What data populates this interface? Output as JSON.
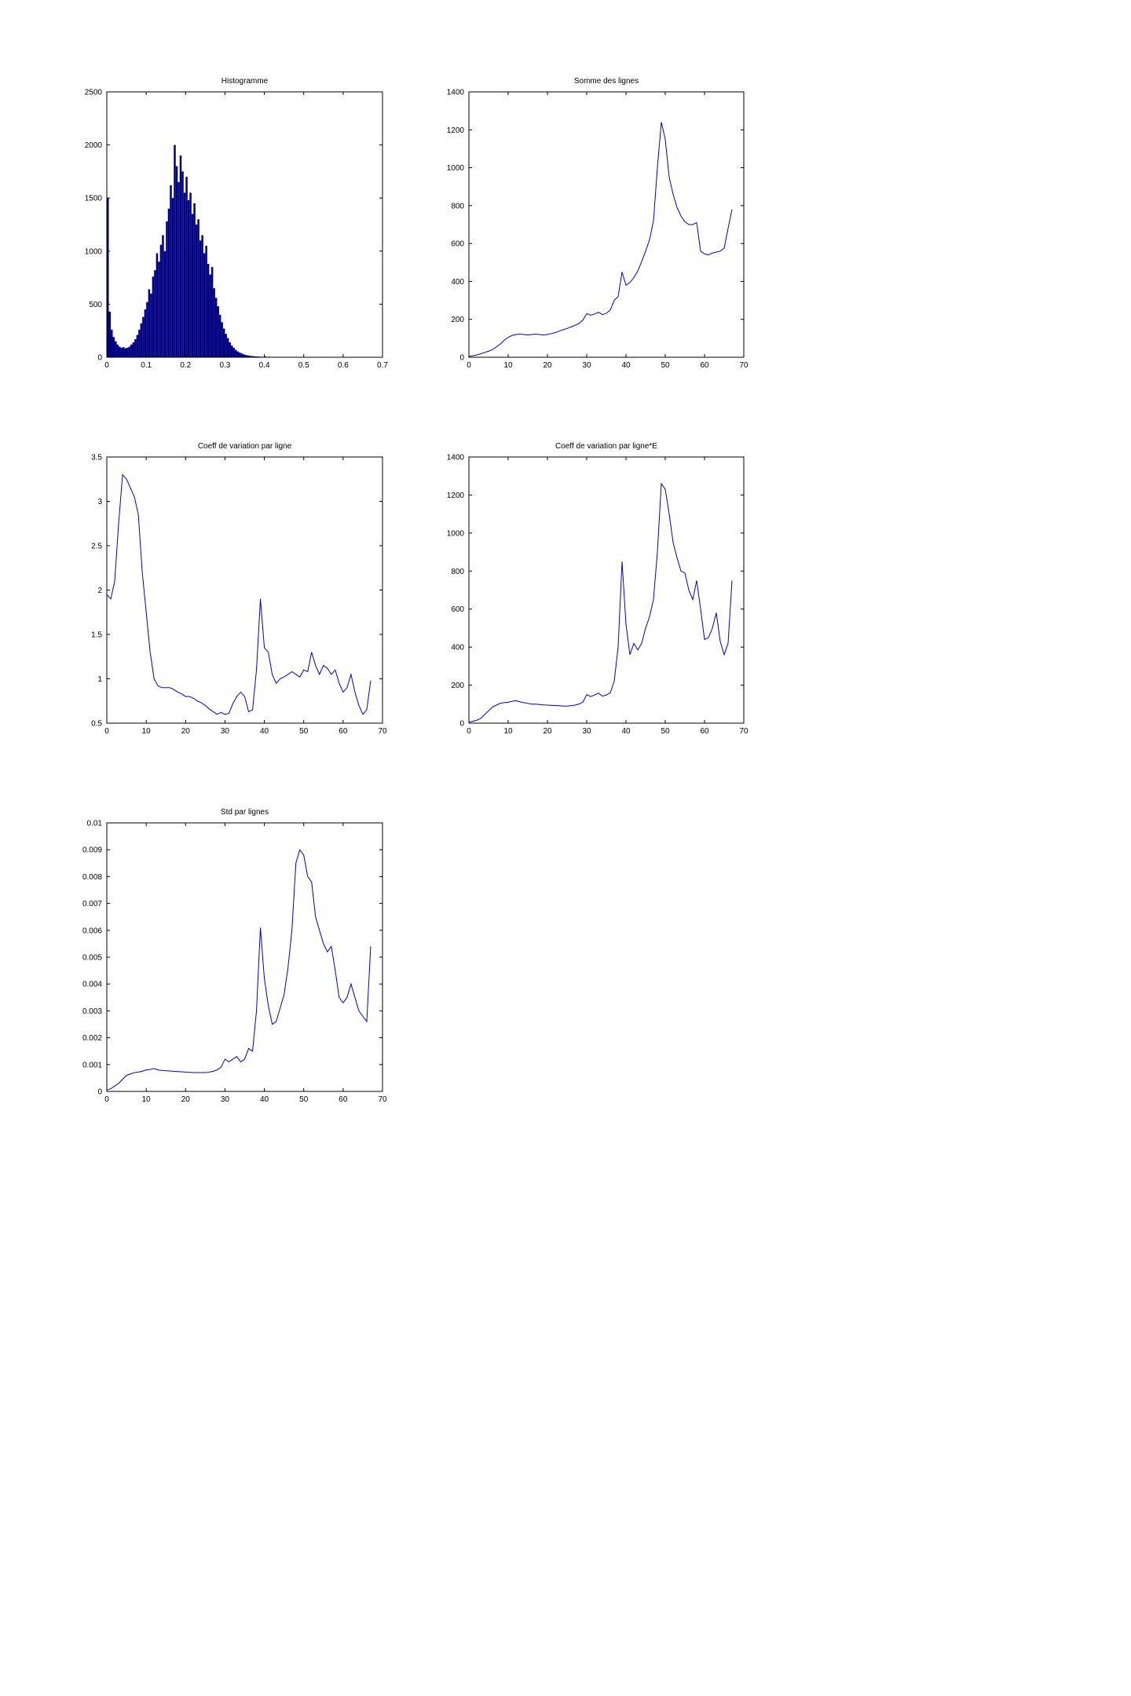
{
  "figure": {
    "background": "#ffffff"
  },
  "chart_data": [
    {
      "id": "histogramme",
      "type": "bar",
      "title": "Histogramme",
      "color": "#000080",
      "xlim": [
        0,
        0.7
      ],
      "ylim": [
        0,
        2500
      ],
      "xticks": [
        0,
        0.1,
        0.2,
        0.3,
        0.4,
        0.5,
        0.6,
        0.7
      ],
      "yticks": [
        0,
        500,
        1000,
        1500,
        2000,
        2500
      ],
      "bin_start": 0,
      "bin_width": 0.005,
      "values": [
        1500,
        430,
        260,
        190,
        150,
        120,
        100,
        90,
        95,
        85,
        90,
        100,
        120,
        140,
        170,
        210,
        260,
        320,
        380,
        450,
        520,
        640,
        600,
        760,
        820,
        980,
        900,
        1060,
        1150,
        1000,
        1280,
        1400,
        1620,
        1500,
        2000,
        1800,
        1650,
        1900,
        1750,
        1550,
        1700,
        1480,
        1550,
        1350,
        1450,
        1250,
        1300,
        1100,
        1150,
        980,
        1050,
        880,
        780,
        850,
        650,
        560,
        480,
        400,
        330,
        270,
        220,
        180,
        140,
        110,
        90,
        70,
        55,
        45,
        35,
        28,
        22,
        18,
        15,
        12,
        10,
        8,
        7,
        6,
        5,
        4,
        8,
        3,
        5,
        2,
        4,
        2,
        3,
        0,
        2,
        0,
        3,
        0,
        2,
        0,
        1,
        0,
        2,
        0,
        1,
        2
      ]
    },
    {
      "id": "somme-des-lignes",
      "type": "line",
      "title": "Somme des lignes",
      "color": "#0000cc",
      "xlim": [
        0,
        70
      ],
      "ylim": [
        0,
        1400
      ],
      "xticks": [
        0,
        10,
        20,
        30,
        40,
        50,
        60,
        70
      ],
      "yticks": [
        0,
        200,
        400,
        600,
        800,
        1000,
        1200,
        1400
      ],
      "x_start": 0,
      "x_step": 1,
      "values": [
        5,
        8,
        12,
        18,
        25,
        32,
        40,
        55,
        70,
        90,
        105,
        115,
        120,
        122,
        120,
        118,
        120,
        122,
        120,
        118,
        120,
        125,
        130,
        138,
        145,
        152,
        160,
        168,
        178,
        195,
        230,
        222,
        228,
        238,
        225,
        232,
        250,
        300,
        320,
        450,
        380,
        395,
        420,
        455,
        505,
        560,
        620,
        720,
        1000,
        1240,
        1150,
        950,
        860,
        790,
        745,
        715,
        700,
        700,
        710,
        560,
        545,
        540,
        550,
        555,
        560,
        575,
        680,
        780
      ]
    },
    {
      "id": "coeff-variation-par-ligne",
      "type": "line",
      "title": "Coeff de variation par ligne",
      "color": "#0000cc",
      "xlim": [
        0,
        70
      ],
      "ylim": [
        0.5,
        3.5
      ],
      "xticks": [
        0,
        10,
        20,
        30,
        40,
        50,
        60,
        70
      ],
      "yticks": [
        0.5,
        1,
        1.5,
        2,
        2.5,
        3,
        3.5
      ],
      "x_start": 0,
      "x_step": 1,
      "values": [
        1.95,
        1.9,
        2.1,
        2.75,
        3.3,
        3.25,
        3.15,
        3.05,
        2.85,
        2.2,
        1.75,
        1.3,
        1.0,
        0.92,
        0.9,
        0.9,
        0.9,
        0.88,
        0.85,
        0.83,
        0.8,
        0.8,
        0.78,
        0.75,
        0.73,
        0.7,
        0.66,
        0.63,
        0.6,
        0.62,
        0.6,
        0.61,
        0.72,
        0.8,
        0.85,
        0.8,
        0.63,
        0.65,
        1.1,
        1.9,
        1.35,
        1.3,
        1.05,
        0.95,
        1.0,
        1.02,
        1.05,
        1.08,
        1.05,
        1.02,
        1.1,
        1.08,
        1.3,
        1.15,
        1.05,
        1.15,
        1.12,
        1.05,
        1.1,
        0.95,
        0.85,
        0.9,
        1.05,
        0.85,
        0.7,
        0.6,
        0.65,
        0.98
      ]
    },
    {
      "id": "coeff-variation-par-ligne-e",
      "type": "line",
      "title": "Coeff de variation par ligne*E",
      "color": "#0000cc",
      "xlim": [
        0,
        70
      ],
      "ylim": [
        0,
        1400
      ],
      "xticks": [
        0,
        10,
        20,
        30,
        40,
        50,
        60,
        70
      ],
      "yticks": [
        0,
        200,
        400,
        600,
        800,
        1000,
        1200,
        1400
      ],
      "x_start": 0,
      "x_step": 1,
      "values": [
        5,
        10,
        15,
        25,
        45,
        65,
        85,
        95,
        105,
        108,
        110,
        115,
        118,
        112,
        108,
        104,
        100,
        100,
        98,
        96,
        95,
        94,
        93,
        92,
        90,
        90,
        92,
        95,
        100,
        110,
        150,
        140,
        148,
        158,
        142,
        148,
        160,
        220,
        400,
        850,
        520,
        360,
        420,
        385,
        420,
        500,
        560,
        650,
        900,
        1260,
        1230,
        1100,
        950,
        870,
        800,
        790,
        700,
        650,
        750,
        600,
        440,
        450,
        500,
        580,
        430,
        360,
        420,
        750
      ]
    },
    {
      "id": "std-par-lignes",
      "type": "line",
      "title": "Std par lignes",
      "color": "#0000cc",
      "xlim": [
        0,
        70
      ],
      "ylim": [
        0,
        0.01
      ],
      "xticks": [
        0,
        10,
        20,
        30,
        40,
        50,
        60,
        70
      ],
      "yticks": [
        0,
        0.001,
        0.002,
        0.003,
        0.004,
        0.005,
        0.006,
        0.007,
        0.008,
        0.009,
        0.01
      ],
      "x_start": 0,
      "x_step": 1,
      "values": [
        5e-05,
        0.0001,
        0.0002,
        0.0003,
        0.00045,
        0.0006,
        0.00065,
        0.0007,
        0.00072,
        0.00075,
        0.0008,
        0.00082,
        0.00085,
        0.0008,
        0.00078,
        0.00077,
        0.00076,
        0.00075,
        0.00074,
        0.00073,
        0.00072,
        0.00071,
        0.0007,
        0.0007,
        0.0007,
        0.0007,
        0.00072,
        0.00075,
        0.0008,
        0.0009,
        0.0012,
        0.0011,
        0.0012,
        0.0013,
        0.0011,
        0.0012,
        0.0016,
        0.0015,
        0.003,
        0.0061,
        0.0042,
        0.0032,
        0.0025,
        0.0026,
        0.0031,
        0.0036,
        0.0046,
        0.006,
        0.0085,
        0.009,
        0.0088,
        0.008,
        0.0078,
        0.0065,
        0.006,
        0.0055,
        0.0052,
        0.0054,
        0.0045,
        0.0035,
        0.0033,
        0.0035,
        0.004,
        0.0035,
        0.003,
        0.0028,
        0.0026,
        0.0054
      ]
    }
  ]
}
